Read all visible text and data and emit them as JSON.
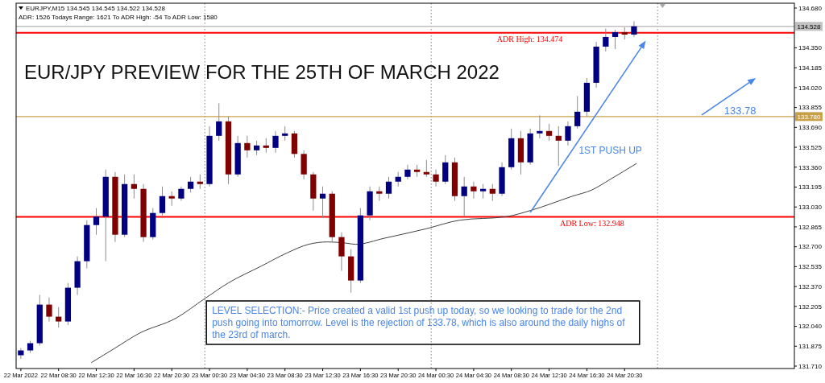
{
  "chart_data": {
    "type": "candlestick",
    "title": "EUR/JPY PREVIEW FOR THE 25TH OF MARCH 2022",
    "subtitle": "EURJPY,M15 134.545 134.545 134.522 134.528",
    "annotations": [
      "ADR: 1526 Todays Range: 1621 To ADR High: -54 To ADR Low: 1580",
      "LEVEL SELECTION:- Price created a valid 1st push up today, so we looking to trade for the 2nd push going into tomorrow. Level is the rejection of 133.78, which is also around the daily highs of the 23rd of march.",
      "1ST PUSH UP",
      "133.78"
    ],
    "x": [
      "2022-03-22T04:30",
      "2022-03-22T05:30",
      "2022-03-22T06:30",
      "2022-03-22T07:30",
      "2022-03-22T08:30",
      "2022-03-22T09:30",
      "2022-03-22T10:30",
      "2022-03-22T11:30",
      "2022-03-22T12:30",
      "2022-03-22T13:30",
      "2022-03-22T14:30",
      "2022-03-22T15:30",
      "2022-03-22T16:30",
      "2022-03-22T17:30",
      "2022-03-22T18:30",
      "2022-03-22T19:30",
      "2022-03-22T20:30",
      "2022-03-22T21:30",
      "2022-03-22T22:30",
      "2022-03-22T23:30",
      "2022-03-23T00:30",
      "2022-03-23T01:30",
      "2022-03-23T02:30",
      "2022-03-23T03:30",
      "2022-03-23T04:30",
      "2022-03-23T05:30",
      "2022-03-23T06:30",
      "2022-03-23T07:30",
      "2022-03-23T08:30",
      "2022-03-23T09:30",
      "2022-03-23T10:30",
      "2022-03-23T11:30",
      "2022-03-23T12:30",
      "2022-03-23T13:30",
      "2022-03-23T14:30",
      "2022-03-23T15:30",
      "2022-03-23T16:30",
      "2022-03-23T17:30",
      "2022-03-23T18:30",
      "2022-03-23T19:30",
      "2022-03-23T20:30",
      "2022-03-23T21:30",
      "2022-03-23T22:30",
      "2022-03-23T23:30",
      "2022-03-24T00:30",
      "2022-03-24T01:30",
      "2022-03-24T02:30",
      "2022-03-24T03:30",
      "2022-03-24T04:30",
      "2022-03-24T05:30",
      "2022-03-24T06:30",
      "2022-03-24T07:30",
      "2022-03-24T08:30",
      "2022-03-24T09:30",
      "2022-03-24T10:30",
      "2022-03-24T11:30",
      "2022-03-24T12:30",
      "2022-03-24T13:30",
      "2022-03-24T14:30",
      "2022-03-24T15:30",
      "2022-03-24T16:30",
      "2022-03-24T17:30",
      "2022-03-24T18:30",
      "2022-03-24T19:30",
      "2022-03-24T20:30",
      "2022-03-24T21:30"
    ],
    "ohlc": [
      [
        131.8,
        131.86,
        131.77,
        131.84
      ],
      [
        131.84,
        131.92,
        131.82,
        131.9
      ],
      [
        131.9,
        132.3,
        131.88,
        132.22
      ],
      [
        132.22,
        132.28,
        132.08,
        132.12
      ],
      [
        132.12,
        132.2,
        132.03,
        132.08
      ],
      [
        132.08,
        132.4,
        132.05,
        132.36
      ],
      [
        132.36,
        132.62,
        132.3,
        132.58
      ],
      [
        132.58,
        132.92,
        132.52,
        132.88
      ],
      [
        132.88,
        133.02,
        132.8,
        132.95
      ],
      [
        132.95,
        133.34,
        132.58,
        133.28
      ],
      [
        133.28,
        133.32,
        132.74,
        132.8
      ],
      [
        132.8,
        133.3,
        132.78,
        133.22
      ],
      [
        133.22,
        133.3,
        133.1,
        133.18
      ],
      [
        133.18,
        133.22,
        132.74,
        132.78
      ],
      [
        132.78,
        133.02,
        132.76,
        132.98
      ],
      [
        132.98,
        133.2,
        132.96,
        133.12
      ],
      [
        133.12,
        133.16,
        133.04,
        133.1
      ],
      [
        133.1,
        133.2,
        133.08,
        133.18
      ],
      [
        133.18,
        133.28,
        133.15,
        133.24
      ],
      [
        133.24,
        133.3,
        133.18,
        133.22
      ],
      [
        133.22,
        133.7,
        133.2,
        133.62
      ],
      [
        133.62,
        133.89,
        133.58,
        133.74
      ],
      [
        133.74,
        133.78,
        133.22,
        133.3
      ],
      [
        133.3,
        133.62,
        133.28,
        133.56
      ],
      [
        133.56,
        133.62,
        133.44,
        133.5
      ],
      [
        133.5,
        133.58,
        133.46,
        133.54
      ],
      [
        133.54,
        133.6,
        133.48,
        133.52
      ],
      [
        133.52,
        133.66,
        133.48,
        133.62
      ],
      [
        133.62,
        133.7,
        133.58,
        133.64
      ],
      [
        133.64,
        133.66,
        133.44,
        133.47
      ],
      [
        133.47,
        133.5,
        133.26,
        133.3
      ],
      [
        133.3,
        133.32,
        133.0,
        133.1
      ],
      [
        133.1,
        133.2,
        132.94,
        133.14
      ],
      [
        133.14,
        133.16,
        132.74,
        132.78
      ],
      [
        132.78,
        132.82,
        132.5,
        132.62
      ],
      [
        132.62,
        132.68,
        132.32,
        132.42
      ],
      [
        132.42,
        133.02,
        132.4,
        132.96
      ],
      [
        132.96,
        133.2,
        132.92,
        133.16
      ],
      [
        133.16,
        133.2,
        133.08,
        133.14
      ],
      [
        133.14,
        133.28,
        133.1,
        133.24
      ],
      [
        133.24,
        133.32,
        133.2,
        133.28
      ],
      [
        133.28,
        133.38,
        133.26,
        133.34
      ],
      [
        133.34,
        133.38,
        133.28,
        133.32
      ],
      [
        133.32,
        133.42,
        133.28,
        133.3
      ],
      [
        133.3,
        133.34,
        133.2,
        133.24
      ],
      [
        133.24,
        133.46,
        133.22,
        133.4
      ],
      [
        133.4,
        133.44,
        133.08,
        133.12
      ],
      [
        133.12,
        133.28,
        132.95,
        133.2
      ],
      [
        133.2,
        133.24,
        133.1,
        133.16
      ],
      [
        133.16,
        133.22,
        133.1,
        133.18
      ],
      [
        133.18,
        133.22,
        133.08,
        133.14
      ],
      [
        133.14,
        133.4,
        133.12,
        133.36
      ],
      [
        133.36,
        133.68,
        133.34,
        133.6
      ],
      [
        133.6,
        133.66,
        133.3,
        133.4
      ],
      [
        133.4,
        133.68,
        133.38,
        133.64
      ],
      [
        133.64,
        133.79,
        133.6,
        133.66
      ],
      [
        133.66,
        133.72,
        133.58,
        133.62
      ],
      [
        133.62,
        133.7,
        133.37,
        133.58
      ],
      [
        133.58,
        133.74,
        133.54,
        133.7
      ],
      [
        133.7,
        133.95,
        133.68,
        133.82
      ],
      [
        133.82,
        134.1,
        133.78,
        134.06
      ],
      [
        134.06,
        134.4,
        134.02,
        134.36
      ],
      [
        134.36,
        134.51,
        134.32,
        134.44
      ],
      [
        134.44,
        134.5,
        134.34,
        134.48
      ],
      [
        134.48,
        134.52,
        134.42,
        134.46
      ],
      [
        134.46,
        134.57,
        134.44,
        134.528
      ]
    ],
    "colors": [
      "#000080",
      "#000080",
      "#000080",
      "#800000",
      "#800000",
      "#000080",
      "#000080",
      "#000080",
      "#000080",
      "#000080",
      "#800000",
      "#000080",
      "#800000",
      "#800000",
      "#000080",
      "#000080",
      "#800000",
      "#000080",
      "#000080",
      "#800000",
      "#000080",
      "#000080",
      "#800000",
      "#000080",
      "#800000",
      "#000080",
      "#800000",
      "#000080",
      "#000080",
      "#800000",
      "#800000",
      "#800000",
      "#000080",
      "#800000",
      "#800000",
      "#800000",
      "#000080",
      "#000080",
      "#800000",
      "#000080",
      "#000080",
      "#000080",
      "#800000",
      "#800000",
      "#800000",
      "#000080",
      "#800000",
      "#000080",
      "#800000",
      "#000080",
      "#800000",
      "#000080",
      "#000080",
      "#800000",
      "#000080",
      "#000080",
      "#800000",
      "#800000",
      "#000080",
      "#000080",
      "#000080",
      "#000080",
      "#000080",
      "#000080",
      "#800000",
      "#000080"
    ],
    "series": [
      {
        "type": "line",
        "color": "#404040",
        "x": [
          "2022-03-22T12:00",
          "2022-03-22T14:30",
          "2022-03-22T17:00",
          "2022-03-22T21:00",
          "2022-03-23T00:00",
          "2022-03-23T02:30",
          "2022-03-23T06:00",
          "2022-03-23T08:45",
          "2022-03-23T11:00",
          "2022-03-23T13:00",
          "2022-03-23T15:00",
          "2022-03-23T16:00",
          "2022-03-23T19:00",
          "2022-03-23T23:30",
          "2022-03-24T03:00",
          "2022-03-24T08:00",
          "2022-03-24T10:30",
          "2022-03-24T15:00",
          "2022-03-24T17:00",
          "2022-03-24T19:00",
          "2022-03-24T21:45"
        ],
        "values": [
          131.74,
          131.86,
          131.98,
          132.11,
          132.27,
          132.4,
          132.54,
          132.65,
          132.72,
          132.74,
          132.73,
          132.72,
          132.77,
          132.85,
          132.92,
          132.95,
          133.0,
          133.12,
          133.17,
          133.26,
          133.39
        ]
      }
    ],
    "xlim": [
      "2022-03-22T04:00",
      "2022-03-25T14:30"
    ],
    "ylim": [
      131.69,
      134.72
    ],
    "xticks": [
      {
        "value": "2022-03-22T04:30",
        "label": "22 Mar 2022"
      },
      {
        "value": "2022-03-22T08:30",
        "label": "22 Mar 08:30"
      },
      {
        "value": "2022-03-22T12:30",
        "label": "22 Mar 12:30"
      },
      {
        "value": "2022-03-22T16:30",
        "label": "22 Mar 16:30"
      },
      {
        "value": "2022-03-22T20:30",
        "label": "22 Mar 20:30"
      },
      {
        "value": "2022-03-23T00:30",
        "label": "23 Mar 00:30"
      },
      {
        "value": "2022-03-23T04:30",
        "label": "23 Mar 04:30"
      },
      {
        "value": "2022-03-23T08:30",
        "label": "23 Mar 08:30"
      },
      {
        "value": "2022-03-23T12:30",
        "label": "23 Mar 12:30"
      },
      {
        "value": "2022-03-23T16:30",
        "label": "23 Mar 16:30"
      },
      {
        "value": "2022-03-23T20:30",
        "label": "23 Mar 20:30"
      },
      {
        "value": "2022-03-24T00:30",
        "label": "24 Mar 00:30"
      },
      {
        "value": "2022-03-24T04:30",
        "label": "24 Mar 04:30"
      },
      {
        "value": "2022-03-24T08:30",
        "label": "24 Mar 08:30"
      },
      {
        "value": "2022-03-24T12:30",
        "label": "24 Mar 12:30"
      },
      {
        "value": "2022-03-24T16:30",
        "label": "24 Mar 16:30"
      },
      {
        "value": "2022-03-24T20:30",
        "label": "24 Mar 20:30"
      }
    ],
    "yticks": [
      {
        "value": 131.71,
        "label": "131.710"
      },
      131.875,
      {
        "value": 132.04,
        "label": "132.040"
      },
      132.205,
      {
        "value": 132.37,
        "label": "132.370"
      },
      132.535,
      {
        "value": 132.7,
        "label": "132.700"
      },
      132.865,
      {
        "value": 133.03,
        "label": "133.030"
      },
      133.195,
      {
        "value": 133.36,
        "label": "133.360"
      },
      133.525,
      {
        "value": 133.69,
        "label": "133.690"
      },
      133.855,
      {
        "value": 134.02,
        "label": "134.020"
      },
      134.185,
      {
        "value": 134.35,
        "label": "134.350"
      },
      {
        "value": 134.68,
        "label": "134.680"
      }
    ],
    "ref_lines": [
      {
        "axis": "x",
        "value": "2022-03-23T00:00",
        "color": "#808080",
        "line_style": "dotted"
      },
      {
        "axis": "x",
        "value": "2022-03-24T00:00",
        "color": "#808080",
        "line_style": "dotted"
      },
      {
        "axis": "x",
        "value": "2022-03-25T00:00",
        "color": "#808080",
        "line_style": "dotted"
      },
      {
        "axis": "y",
        "value": 134.528,
        "label": "134.528",
        "color": "#c0c0c0"
      },
      {
        "axis": "y",
        "value": 134.474,
        "label": "ADR High: 134.474",
        "color": "#ff0000"
      },
      {
        "axis": "y",
        "value": 133.78,
        "label": "133.780",
        "color": "#c9a04a"
      },
      {
        "axis": "y",
        "value": 132.948,
        "label": "ADR Low: 132.948",
        "color": "#ff0000"
      }
    ]
  }
}
